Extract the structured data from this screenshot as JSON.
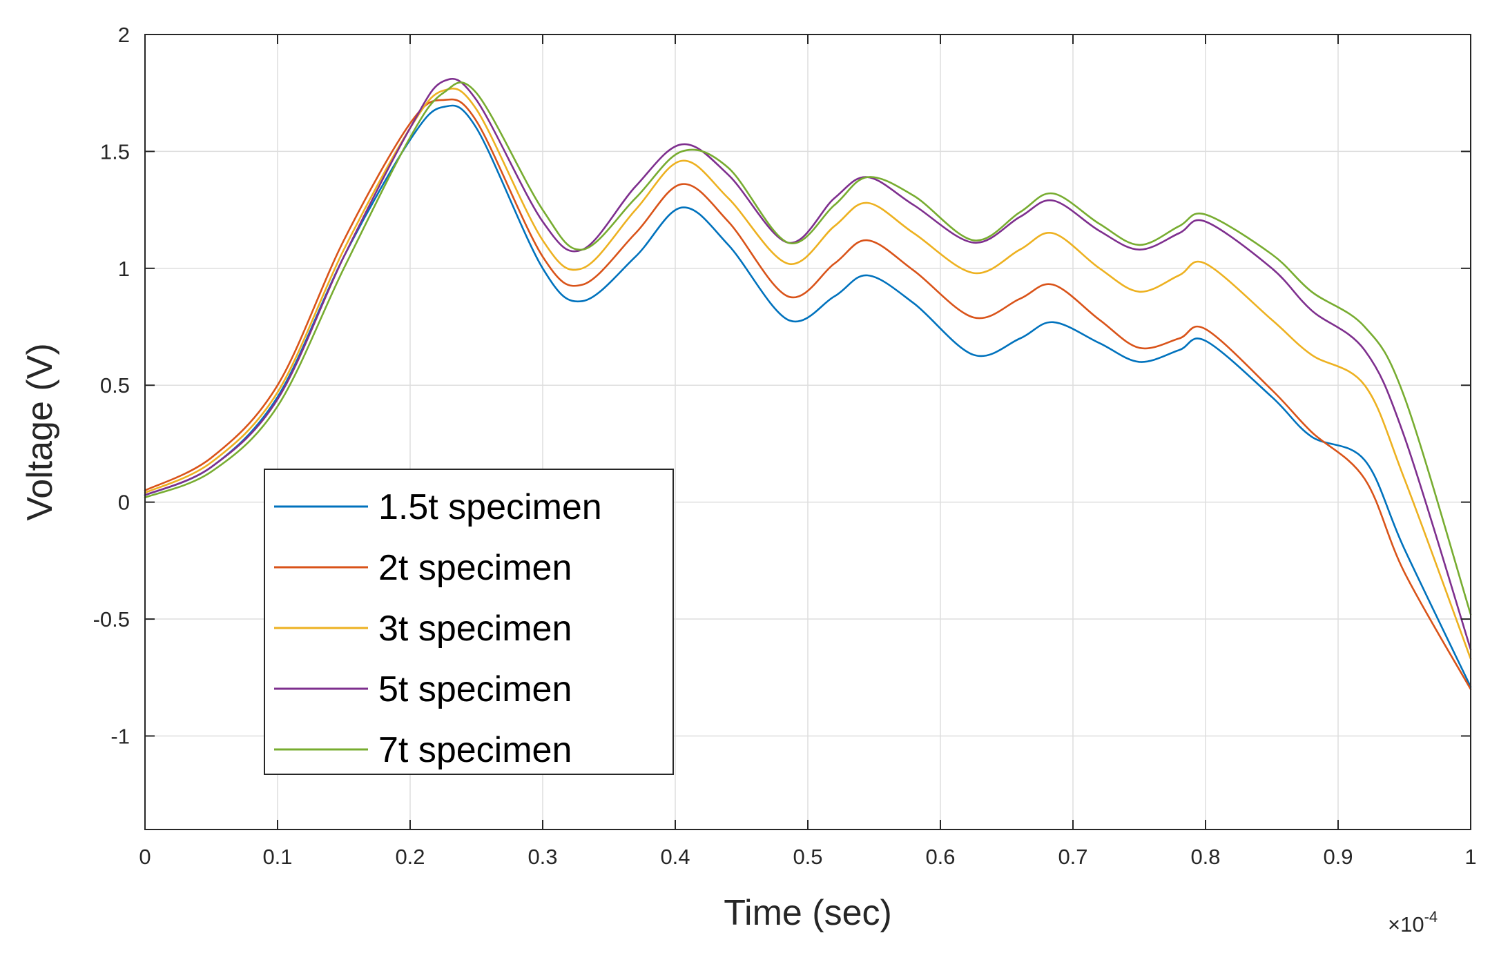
{
  "chart_data": {
    "type": "line",
    "title": "",
    "xlabel": "Time (sec)",
    "ylabel": "Voltage (V)",
    "x_exponent_label": "×10",
    "x_exponent_power": "-4",
    "xlim": [
      0,
      1
    ],
    "ylim": [
      -1.4,
      2
    ],
    "xticks": [
      0,
      0.1,
      0.2,
      0.3,
      0.4,
      0.5,
      0.6,
      0.7,
      0.8,
      0.9,
      1
    ],
    "xtick_labels": [
      "0",
      "0.1",
      "0.2",
      "0.3",
      "0.4",
      "0.5",
      "0.6",
      "0.7",
      "0.8",
      "0.9",
      "1"
    ],
    "yticks": [
      -1,
      -0.5,
      0,
      0.5,
      1,
      1.5,
      2
    ],
    "ytick_labels": [
      "-1",
      "-0.5",
      "0",
      "0.5",
      "1",
      "1.5",
      "2"
    ],
    "grid": true,
    "legend_position": "lower-left",
    "x": [
      0,
      0.05,
      0.1,
      0.15,
      0.2,
      0.225,
      0.25,
      0.3,
      0.33,
      0.37,
      0.405,
      0.44,
      0.485,
      0.52,
      0.545,
      0.58,
      0.625,
      0.66,
      0.685,
      0.72,
      0.75,
      0.78,
      0.8,
      0.85,
      0.88,
      0.92,
      0.95,
      1.0
    ],
    "series": [
      {
        "name": "1.5t specimen",
        "color": "#0072BD",
        "values": [
          0.03,
          0.15,
          0.45,
          1.05,
          1.55,
          1.69,
          1.6,
          1.0,
          0.86,
          1.05,
          1.26,
          1.1,
          0.78,
          0.88,
          0.97,
          0.85,
          0.63,
          0.7,
          0.77,
          0.68,
          0.6,
          0.65,
          0.69,
          0.45,
          0.28,
          0.18,
          -0.2,
          -0.79
        ]
      },
      {
        "name": "2t specimen",
        "color": "#D95319",
        "values": [
          0.05,
          0.19,
          0.5,
          1.12,
          1.62,
          1.72,
          1.63,
          1.05,
          0.93,
          1.15,
          1.36,
          1.2,
          0.88,
          1.02,
          1.12,
          0.99,
          0.79,
          0.87,
          0.93,
          0.78,
          0.66,
          0.7,
          0.74,
          0.48,
          0.3,
          0.1,
          -0.3,
          -0.8
        ]
      },
      {
        "name": "3t specimen",
        "color": "#EDB120",
        "values": [
          0.04,
          0.17,
          0.47,
          1.08,
          1.6,
          1.76,
          1.68,
          1.12,
          1.0,
          1.25,
          1.46,
          1.3,
          1.02,
          1.18,
          1.28,
          1.15,
          0.98,
          1.08,
          1.15,
          1.0,
          0.9,
          0.97,
          1.02,
          0.78,
          0.63,
          0.5,
          0.1,
          -0.67
        ]
      },
      {
        "name": "5t specimen",
        "color": "#7E2F8E",
        "values": [
          0.03,
          0.15,
          0.44,
          1.05,
          1.6,
          1.8,
          1.72,
          1.2,
          1.08,
          1.35,
          1.53,
          1.4,
          1.11,
          1.3,
          1.39,
          1.27,
          1.11,
          1.22,
          1.29,
          1.16,
          1.08,
          1.15,
          1.2,
          1.0,
          0.82,
          0.65,
          0.28,
          -0.63
        ]
      },
      {
        "name": "7t specimen",
        "color": "#77AC30",
        "values": [
          0.02,
          0.13,
          0.41,
          1.0,
          1.56,
          1.75,
          1.75,
          1.25,
          1.08,
          1.3,
          1.5,
          1.43,
          1.11,
          1.27,
          1.39,
          1.31,
          1.12,
          1.24,
          1.32,
          1.19,
          1.1,
          1.18,
          1.23,
          1.06,
          0.9,
          0.75,
          0.45,
          -0.48
        ]
      }
    ]
  }
}
